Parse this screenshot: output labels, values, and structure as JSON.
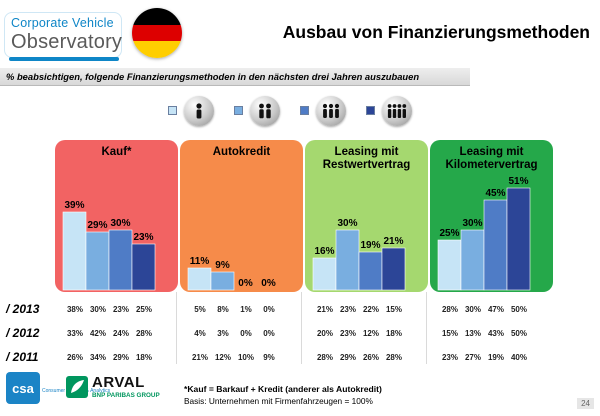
{
  "header": {
    "logo_line1": "Corporate Vehicle",
    "logo_line2": "Observatory",
    "title": "Ausbau von Finanzierungsmethoden"
  },
  "subtitle": "% beabsichtigen, folgende Finanzierungsmethoden in den nächsten drei Jahren auszubauen",
  "flag_colors": [
    "#000000",
    "#dd0000",
    "#ffce00"
  ],
  "legend_icons": [
    "person-1-icon",
    "person-2-icon",
    "person-3-icon",
    "person-4-icon"
  ],
  "chart_data": {
    "type": "bar",
    "series_colors": [
      "#c6e4f6",
      "#79aee0",
      "#4f7cc6",
      "#2c4597"
    ],
    "ylim": [
      0,
      60
    ],
    "categories": [
      {
        "name": "Kauf*",
        "panel_color": "#f26363",
        "values": [
          39,
          29,
          30,
          23
        ],
        "labels": [
          "39%",
          "29%",
          "30%",
          "23%"
        ]
      },
      {
        "name": "Autokredit",
        "panel_color": "#f68b4a",
        "values": [
          11,
          9,
          0,
          0
        ],
        "labels": [
          "11%",
          "9%",
          "0%",
          "0%"
        ]
      },
      {
        "name": "Leasing mit Restwertvertrag",
        "panel_color": "#a5d86f",
        "values": [
          16,
          30,
          19,
          21
        ],
        "labels": [
          "16%",
          "30%",
          "19%",
          "21%"
        ]
      },
      {
        "name": "Leasing mit Kilometervertrag",
        "panel_color": "#25a84a",
        "values": [
          25,
          30,
          45,
          51
        ],
        "labels": [
          "25%",
          "30%",
          "45%",
          "51%"
        ]
      }
    ]
  },
  "table": {
    "rows": [
      {
        "label": "/ 2013",
        "values": [
          [
            "38%",
            "30%",
            "23%",
            "25%"
          ],
          [
            "5%",
            "8%",
            "1%",
            "0%"
          ],
          [
            "21%",
            "23%",
            "22%",
            "15%"
          ],
          [
            "28%",
            "30%",
            "47%",
            "50%"
          ]
        ]
      },
      {
        "label": "/ 2012",
        "values": [
          [
            "33%",
            "42%",
            "24%",
            "28%"
          ],
          [
            "4%",
            "3%",
            "0%",
            "0%"
          ],
          [
            "20%",
            "23%",
            "12%",
            "18%"
          ],
          [
            "15%",
            "13%",
            "43%",
            "50%"
          ]
        ]
      },
      {
        "label": "/ 2011",
        "values": [
          [
            "26%",
            "34%",
            "29%",
            "18%"
          ],
          [
            "21%",
            "12%",
            "10%",
            "9%"
          ],
          [
            "28%",
            "29%",
            "26%",
            "28%"
          ],
          [
            "23%",
            "27%",
            "19%",
            "40%"
          ]
        ]
      }
    ]
  },
  "footer": {
    "note1": "*Kauf = Barkauf + Kredit (anderer als Autokredit)",
    "note2": "Basis: Unternehmen mit Firmenfahrzeugen = 100%",
    "page_number": "24",
    "csa_logo": "csa",
    "csa_sub": "Consumer Science & Analytics",
    "arval_logo": "ARVAL",
    "arval_sub": "BNP PARIBAS GROUP"
  }
}
